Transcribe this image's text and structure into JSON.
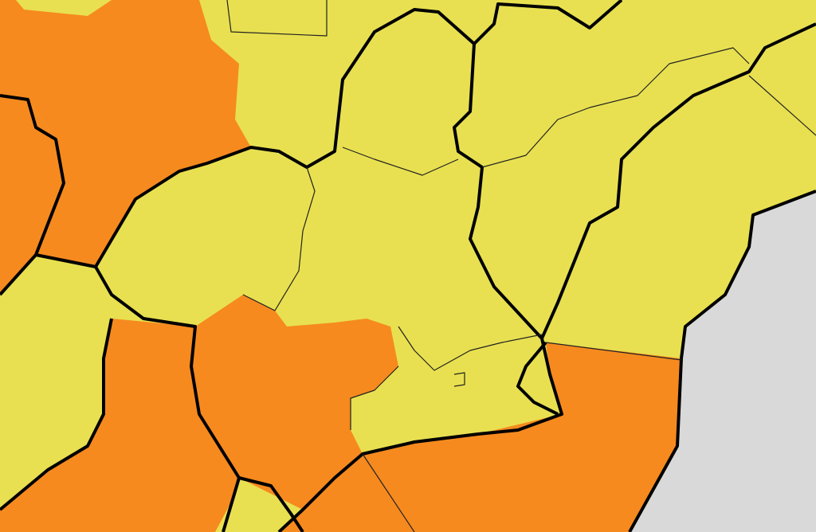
{
  "map": {
    "colors": {
      "yellow_warning": "#e8e050",
      "orange_warning": "#f68a1e",
      "sea": "#d9d9d9",
      "border": "#000000"
    },
    "zones": [
      {
        "level": "orange",
        "area": "northwest"
      },
      {
        "level": "orange",
        "area": "west"
      },
      {
        "level": "orange",
        "area": "southwest"
      },
      {
        "level": "orange",
        "area": "south-central"
      },
      {
        "level": "orange",
        "area": "southeast-coast"
      },
      {
        "level": "yellow",
        "area": "north"
      },
      {
        "level": "yellow",
        "area": "center"
      },
      {
        "level": "yellow",
        "area": "east-coast"
      }
    ]
  }
}
